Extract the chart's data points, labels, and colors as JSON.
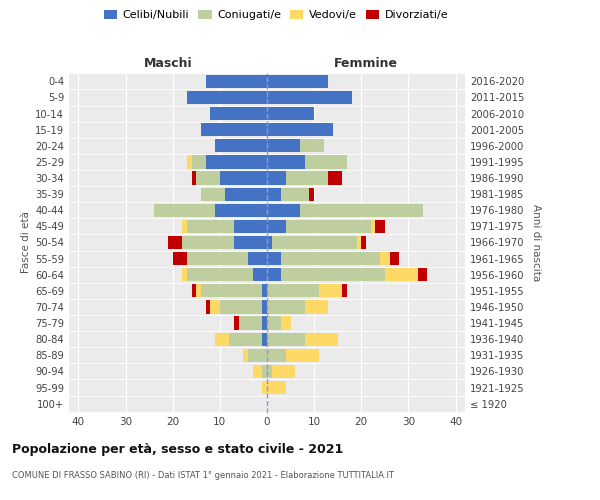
{
  "age_groups": [
    "100+",
    "95-99",
    "90-94",
    "85-89",
    "80-84",
    "75-79",
    "70-74",
    "65-69",
    "60-64",
    "55-59",
    "50-54",
    "45-49",
    "40-44",
    "35-39",
    "30-34",
    "25-29",
    "20-24",
    "15-19",
    "10-14",
    "5-9",
    "0-4"
  ],
  "birth_years": [
    "≤ 1920",
    "1921-1925",
    "1926-1930",
    "1931-1935",
    "1936-1940",
    "1941-1945",
    "1946-1950",
    "1951-1955",
    "1956-1960",
    "1961-1965",
    "1966-1970",
    "1971-1975",
    "1976-1980",
    "1981-1985",
    "1986-1990",
    "1991-1995",
    "1996-2000",
    "2001-2005",
    "2006-2010",
    "2011-2015",
    "2016-2020"
  ],
  "colors": {
    "celibe": "#4472C4",
    "coniugato": "#BFCE9E",
    "vedovo": "#FFD966",
    "divorziato": "#C00000"
  },
  "maschi": {
    "celibe": [
      0,
      0,
      0,
      0,
      1,
      1,
      1,
      1,
      3,
      4,
      7,
      7,
      11,
      9,
      10,
      13,
      11,
      14,
      12,
      17,
      13
    ],
    "coniugato": [
      0,
      0,
      1,
      4,
      7,
      5,
      9,
      13,
      14,
      13,
      11,
      10,
      13,
      5,
      5,
      3,
      0,
      0,
      0,
      0,
      0
    ],
    "vedovo": [
      0,
      1,
      2,
      1,
      3,
      0,
      2,
      1,
      1,
      0,
      0,
      1,
      0,
      0,
      0,
      1,
      0,
      0,
      0,
      0,
      0
    ],
    "divorziato": [
      0,
      0,
      0,
      0,
      0,
      1,
      1,
      1,
      0,
      3,
      3,
      0,
      0,
      0,
      1,
      0,
      0,
      0,
      0,
      0,
      0
    ]
  },
  "femmine": {
    "nubile": [
      0,
      0,
      0,
      0,
      0,
      0,
      0,
      0,
      3,
      3,
      1,
      4,
      7,
      3,
      4,
      8,
      7,
      14,
      10,
      18,
      13
    ],
    "coniugata": [
      0,
      0,
      1,
      4,
      8,
      3,
      8,
      11,
      22,
      21,
      18,
      18,
      26,
      6,
      9,
      9,
      5,
      0,
      0,
      0,
      0
    ],
    "vedova": [
      0,
      4,
      5,
      7,
      7,
      2,
      5,
      5,
      7,
      2,
      1,
      1,
      0,
      0,
      0,
      0,
      0,
      0,
      0,
      0,
      0
    ],
    "divorziata": [
      0,
      0,
      0,
      0,
      0,
      0,
      0,
      1,
      2,
      2,
      1,
      2,
      0,
      1,
      3,
      0,
      0,
      0,
      0,
      0,
      0
    ]
  },
  "xlim": [
    -42,
    42
  ],
  "xticks": [
    -40,
    -30,
    -20,
    -10,
    0,
    10,
    20,
    30,
    40
  ],
  "xticklabels": [
    "40",
    "30",
    "20",
    "10",
    "0",
    "10",
    "20",
    "30",
    "40"
  ],
  "title": "Popolazione per età, sesso e stato civile - 2021",
  "subtitle": "COMUNE DI FRASSO SABINO (RI) - Dati ISTAT 1° gennaio 2021 - Elaborazione TUTTITALIA.IT",
  "ylabel_left": "Fasce di età",
  "ylabel_right": "Anni di nascita",
  "header_maschi": "Maschi",
  "header_femmine": "Femmine",
  "legend_labels": [
    "Celibi/Nubili",
    "Coniugati/e",
    "Vedovi/e",
    "Divorziati/e"
  ]
}
